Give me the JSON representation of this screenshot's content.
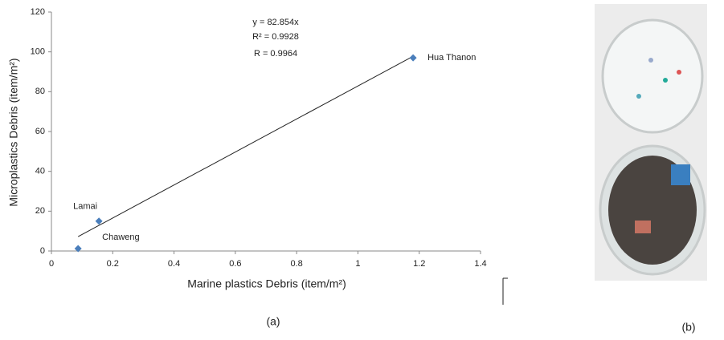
{
  "chart_data": {
    "type": "scatter",
    "xlabel": "Marine plastics Debris (item/m²)",
    "ylabel": "Microplastics  Debris (item/m²)",
    "series": [
      {
        "color": "#4a7ebb",
        "x": [
          0.087,
          0.155,
          1.18
        ],
        "values": [
          1.2,
          15,
          97
        ],
        "point_labels": [
          "Chaweng",
          "Lamai",
          "Hua Thanon"
        ]
      }
    ],
    "trendline": {
      "slope": 82.854,
      "label": "y = 82.854x"
    },
    "annotations": [
      "R² = 0.9928",
      "R = 0.9964"
    ],
    "xlim": [
      0,
      1.4
    ],
    "xticks": [
      0,
      0.2,
      0.4,
      0.6,
      0.8,
      1,
      1.2,
      1.4
    ],
    "ylim": [
      0,
      120
    ],
    "yticks": [
      0,
      20,
      40,
      60,
      80,
      100,
      120
    ],
    "grid": false
  },
  "captions": [
    "(a)",
    "(b)"
  ]
}
